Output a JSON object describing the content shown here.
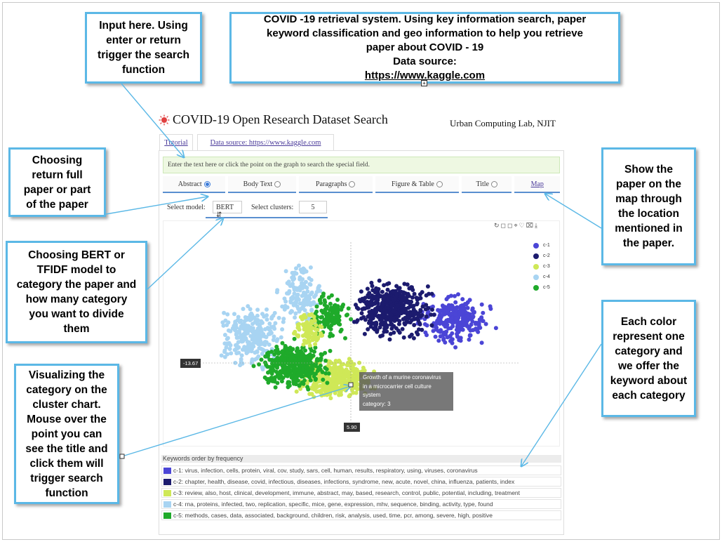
{
  "callouts": {
    "input": [
      "Input here. Using",
      "enter or return",
      "trigger the search",
      "function"
    ],
    "system": [
      "COVID -19 retrieval system. Using key information search,  paper",
      "keyword classification and geo information to help you retrieve",
      "paper about COVID - 19"
    ],
    "system_source_label": "Data source: ",
    "system_source_link": "https://www.kaggle.com",
    "choose_return": [
      "Choosing",
      "return full",
      "paper or part",
      "of the paper"
    ],
    "choose_model": [
      "Choosing BERT or",
      "TFIDF model to",
      "category the paper and",
      "how many category",
      "you want to divide",
      "them"
    ],
    "visualize": [
      "Visualizing the",
      "category on the",
      "cluster chart.",
      "Mouse over the",
      "point you can",
      "see the title and",
      "click them will",
      "trigger search",
      "function"
    ],
    "map": [
      "Show the",
      "paper on the",
      "map through",
      "the location",
      "mentioned in",
      "the paper."
    ],
    "color": [
      "Each color",
      "represent one",
      "category and",
      "we offer the",
      "keyword about",
      "each category"
    ]
  },
  "app": {
    "title": "COVID-19 Open Research Dataset Search",
    "lab": "Urban Computing Lab, NJIT",
    "tutorial": "Tutorial",
    "datasource": "Data source: https://www.kaggle.com",
    "search_placeholder": "Enter the text here or click the point on the graph to search the special field.",
    "tabs": [
      "Abstract",
      "Body Text",
      "Paragraphs",
      "Figure & Table",
      "Title",
      "Map"
    ],
    "select_model_label": "Select model:",
    "model_value": "BERT",
    "select_clusters_label": "Select clusters:",
    "clusters_value": "5",
    "toolbar_icons": [
      "restore-icon",
      "zoom-icon",
      "zoom-reset-icon",
      "lasso-icon",
      "brush-icon",
      "clear-icon",
      "download-icon"
    ]
  },
  "chart_data": {
    "type": "scatter",
    "series": [
      {
        "name": "c-1",
        "color": "#4b45d6"
      },
      {
        "name": "c-2",
        "color": "#1c1b6e"
      },
      {
        "name": "c-3",
        "color": "#cfe857"
      },
      {
        "name": "c-4",
        "color": "#a8d4f2"
      },
      {
        "name": "c-5",
        "color": "#1faa2a"
      }
    ],
    "crosshair_y_label": "-13.67",
    "crosshair_x_label": "5.90",
    "tooltip": [
      "Growth of a murine coronavirus",
      "in a microcarrier cell culture",
      "system",
      "category: 3"
    ]
  },
  "keywords": {
    "heading": "Keywords order by frequency",
    "rows": [
      {
        "color": "#4b45d6",
        "text": "c-1: virus, infection, cells, protein, viral, cov, study, sars, cell, human, results, respiratory, using, viruses, coronavirus"
      },
      {
        "color": "#1c1b6e",
        "text": "c-2: chapter, health, disease, covid, infectious, diseases, infections, syndrome, new, acute, novel, china, influenza, patients, index"
      },
      {
        "color": "#cfe857",
        "text": "c-3: review, also, host, clinical, development, immune, abstract, may, based, research, control, public, potential, including, treatment"
      },
      {
        "color": "#a8d4f2",
        "text": "c-4: rna, proteins, infected, two, replication, specific, mice, gene, expression, mhv, sequence, binding, activity, type, found"
      },
      {
        "color": "#1faa2a",
        "text": "c-5: methods, cases, data, associated, background, children, risk, analysis, used, time, pcr, among, severe, high, positive"
      }
    ]
  }
}
